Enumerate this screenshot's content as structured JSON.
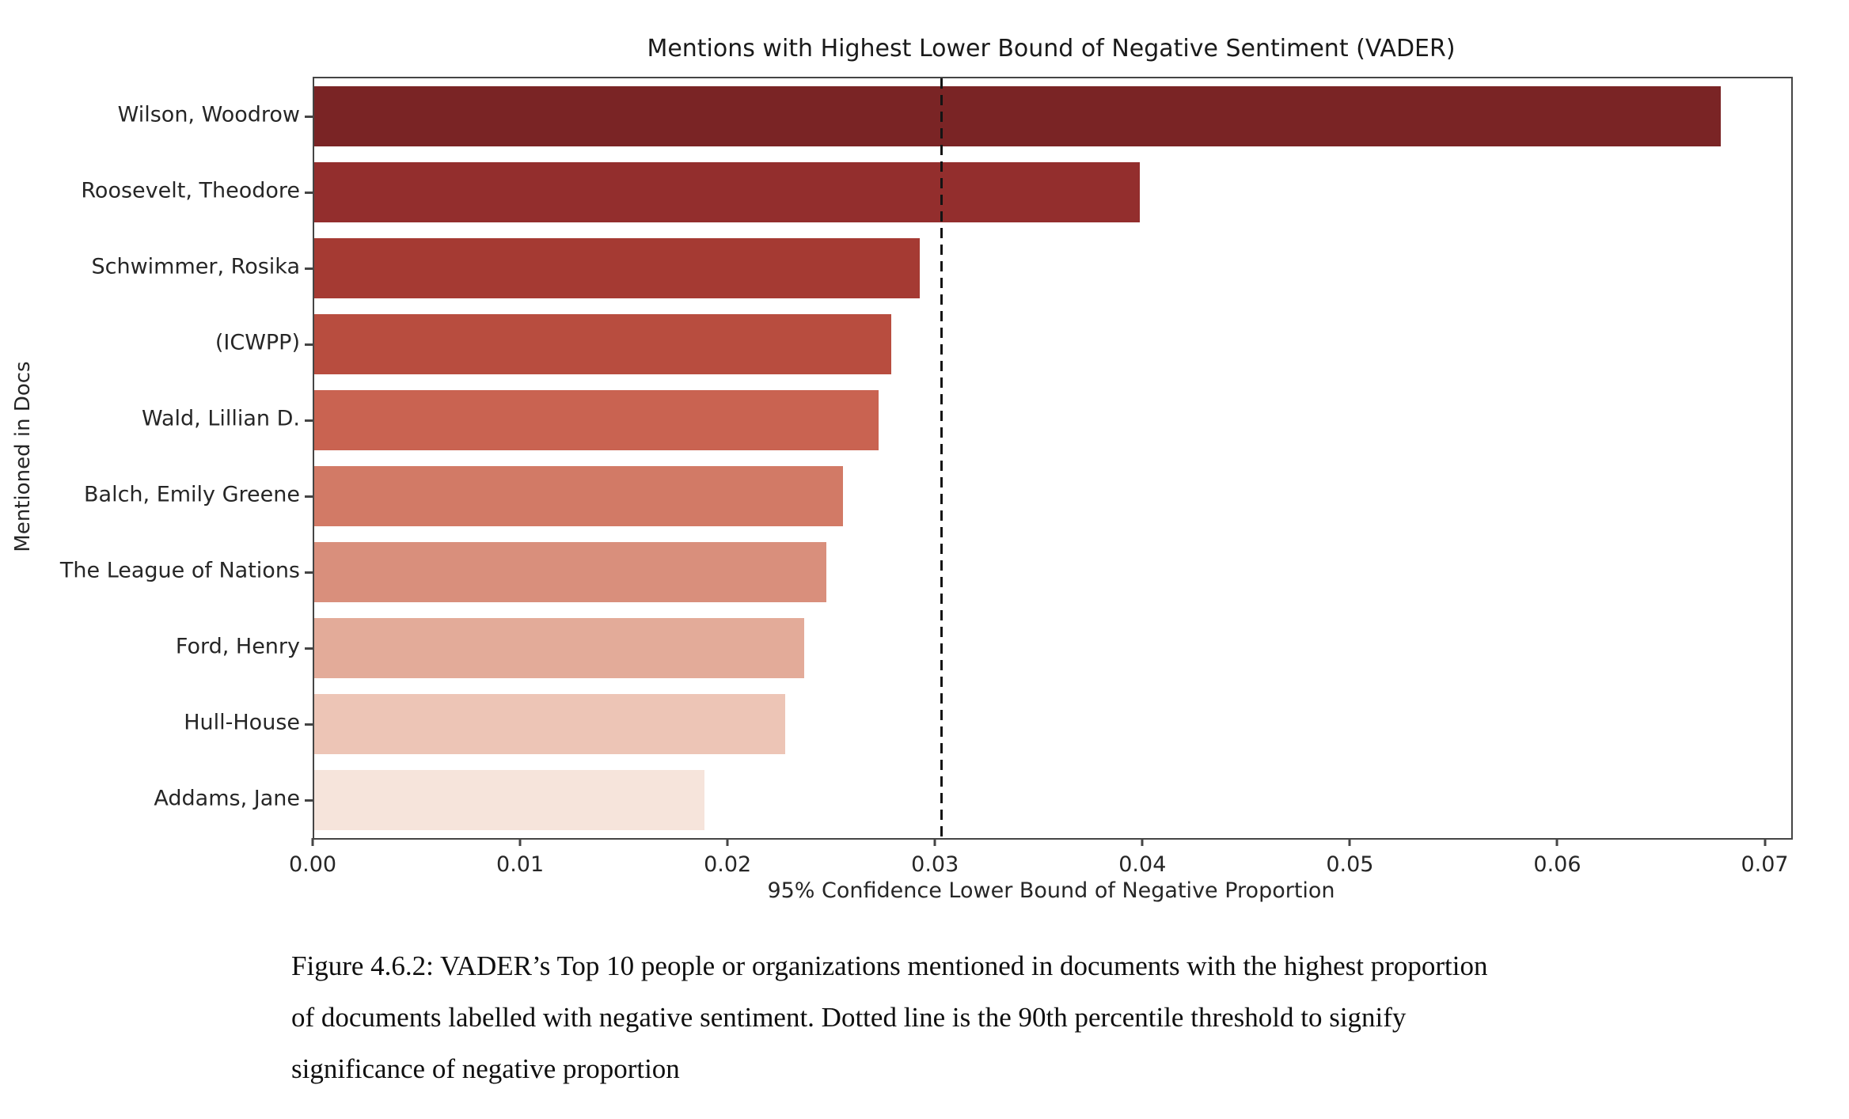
{
  "figure": {
    "title": "Mentions with Highest Lower Bound of Negative Sentiment (VADER)",
    "xlabel": "95% Confidence Lower Bound of Negative Proportion",
    "ylabel": "Mentioned in Docs",
    "caption_lines": [
      "Figure 4.6.2: VADER’s Top 10 people or organizations mentioned in documents with the highest proportion",
      "of documents labelled with negative sentiment. Dotted line is the 90th percentile threshold to signify",
      "significance of negative proportion"
    ]
  },
  "chart_data": {
    "type": "bar",
    "orientation": "horizontal",
    "title": "Mentions with Highest Lower Bound of Negative Sentiment (VADER)",
    "xlabel": "95% Confidence Lower Bound of Negative Proportion",
    "ylabel": "Mentioned in Docs",
    "categories": [
      "Wilson, Woodrow",
      "Roosevelt, Theodore",
      "Schwimmer, Rosika",
      "(ICWPP)",
      "Wald, Lillian D.",
      "Balch, Emily Greene",
      "The League of Nations",
      "Ford, Henry",
      "Hull-House",
      "Addams, Jane"
    ],
    "values": [
      0.0678,
      0.0398,
      0.0292,
      0.0278,
      0.0272,
      0.0255,
      0.0247,
      0.0236,
      0.0227,
      0.0188
    ],
    "xlim": [
      0,
      0.0712
    ],
    "xticks": [
      0.0,
      0.01,
      0.02,
      0.03,
      0.04,
      0.05,
      0.06,
      0.07
    ],
    "xtick_labels": [
      "0.00",
      "0.01",
      "0.02",
      "0.03",
      "0.04",
      "0.05",
      "0.06",
      "0.07"
    ],
    "threshold_line": {
      "value": 0.0302,
      "style": "dashed",
      "color": "#141414",
      "meaning": "90th percentile threshold"
    },
    "bar_colors": [
      "#7a2425",
      "#932e2d",
      "#a53a33",
      "#b84d3f",
      "#c96351",
      "#d27a66",
      "#d98f7c",
      "#e3ab99",
      "#edc5b6",
      "#f6e4db"
    ],
    "grid": false,
    "legend": null
  }
}
